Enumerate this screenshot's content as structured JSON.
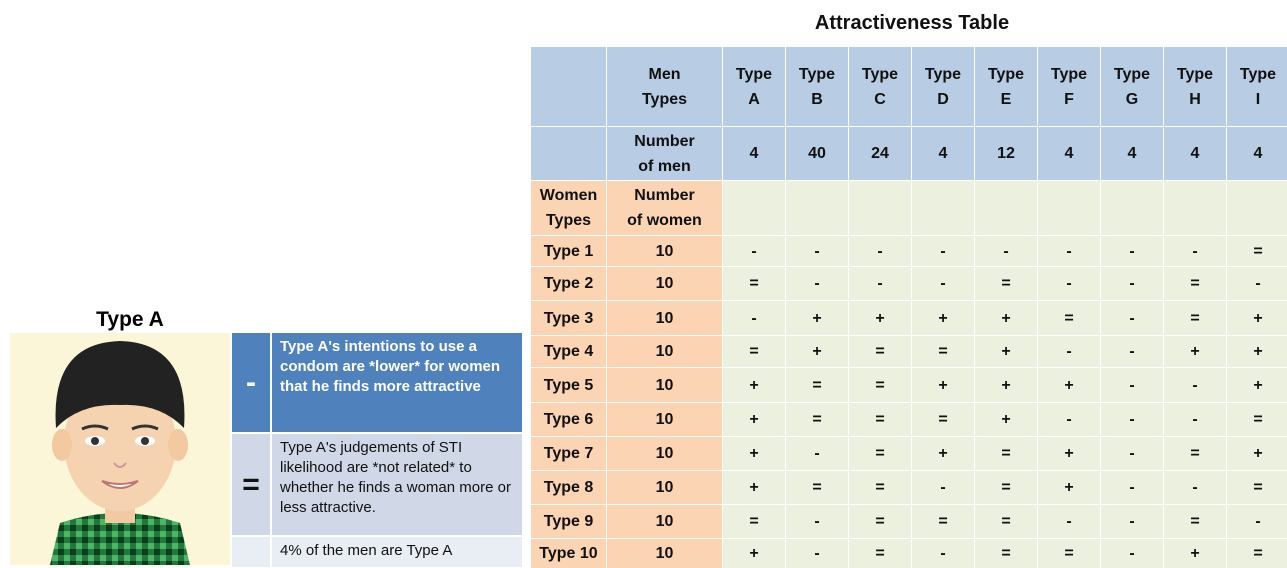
{
  "profile": {
    "name": "Type A",
    "legend": [
      {
        "symbol": "-",
        "text": "Type A's intentions to use a condom are *lower* for women that he finds more attractive"
      },
      {
        "symbol": "=",
        "text": "Type A's judgements of STI likelihood are *not related* to whether he finds a woman more or less attractive."
      }
    ],
    "note": "4% of the men are Type A"
  },
  "table": {
    "title": "Attractiveness Table",
    "header": {
      "men_types": "Men Types",
      "types": [
        "Type A",
        "Type B",
        "Type C",
        "Type D",
        "Type E",
        "Type F",
        "Type G",
        "Type H",
        "Type I"
      ]
    },
    "men_row": {
      "label": "Number of men",
      "values": [
        4,
        40,
        24,
        4,
        12,
        4,
        4,
        4,
        4
      ]
    },
    "women_header": {
      "types": "Women Types",
      "number": "Number of women"
    },
    "rows": [
      {
        "type": "Type 1",
        "women": 10,
        "cells": [
          "-",
          "-",
          "-",
          "-",
          "-",
          "-",
          "-",
          "-",
          "="
        ]
      },
      {
        "type": "Type 2",
        "women": 10,
        "cells": [
          "=",
          "-",
          "-",
          "-",
          "=",
          "-",
          "-",
          "=",
          "-"
        ]
      },
      {
        "type": "Type 3",
        "women": 10,
        "cells": [
          "-",
          "+",
          "+",
          "+",
          "+",
          "=",
          "-",
          "=",
          "+"
        ]
      },
      {
        "type": "Type 4",
        "women": 10,
        "cells": [
          "=",
          "+",
          "=",
          "=",
          "+",
          "-",
          "-",
          "+",
          "+"
        ]
      },
      {
        "type": "Type 5",
        "women": 10,
        "cells": [
          "+",
          "=",
          "=",
          "+",
          "+",
          "+",
          "-",
          "-",
          "+"
        ]
      },
      {
        "type": "Type 6",
        "women": 10,
        "cells": [
          "+",
          "=",
          "=",
          "=",
          "+",
          "-",
          "-",
          "-",
          "="
        ]
      },
      {
        "type": "Type 7",
        "women": 10,
        "cells": [
          "+",
          "-",
          "=",
          "+",
          "=",
          "+",
          "-",
          "=",
          "+"
        ]
      },
      {
        "type": "Type 8",
        "women": 10,
        "cells": [
          "+",
          "=",
          "=",
          "-",
          "=",
          "+",
          "-",
          "-",
          "="
        ]
      },
      {
        "type": "Type 9",
        "women": 10,
        "cells": [
          "=",
          "-",
          "=",
          "=",
          "=",
          "-",
          "-",
          "=",
          "-"
        ]
      },
      {
        "type": "Type 10",
        "women": 10,
        "cells": [
          "+",
          "-",
          "=",
          "-",
          "=",
          "=",
          "-",
          "+",
          "="
        ]
      }
    ]
  }
}
